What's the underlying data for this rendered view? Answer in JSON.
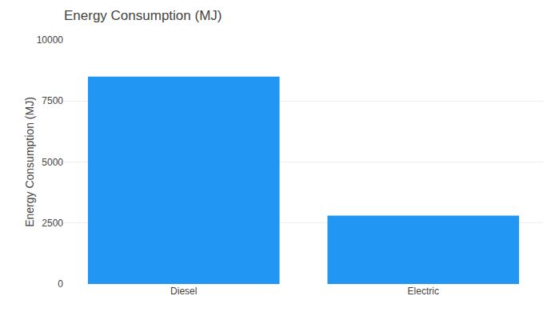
{
  "chart_data": {
    "type": "bar",
    "title": "Energy Consumption (MJ)",
    "ylabel": "Energy Consumption (MJ)",
    "categories": [
      "Diesel",
      "Electric"
    ],
    "values": [
      8500,
      2800
    ],
    "color": "#2196F3",
    "ylim": [
      0,
      10000
    ],
    "yticks": [
      0,
      2500,
      5000,
      7500,
      10000
    ],
    "grid": true
  }
}
